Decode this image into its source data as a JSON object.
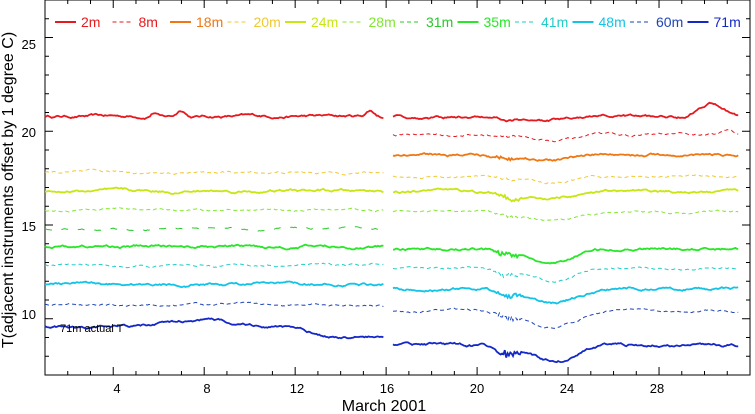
{
  "chart_data": {
    "type": "line",
    "title": "",
    "xlabel": "March 2001",
    "ylabel": "T(adjacent instruments offset by 1 degree C)",
    "xlim": [
      1,
      32
    ],
    "ylim": [
      7,
      27
    ],
    "xticks": [
      4,
      8,
      12,
      16,
      20,
      24,
      28
    ],
    "xtick_labels": [
      "4",
      "8",
      "12",
      "16",
      "20",
      "24",
      "28"
    ],
    "yticks": [
      10,
      15,
      20,
      25
    ],
    "ytick_labels": [
      "10",
      "15",
      "20",
      "25"
    ],
    "gap": [
      15.9,
      16.3
    ],
    "legend_position": "top",
    "annotation": "71m actual T",
    "series": [
      {
        "name": "2m",
        "color": "#e6191e",
        "style": "solid",
        "base_before": 20.8,
        "base_after": 20.75
      },
      {
        "name": "8m",
        "color": "#e6191e",
        "style": "dashed",
        "base_before": null,
        "base_after": 19.8
      },
      {
        "name": "18m",
        "color": "#f07814",
        "style": "solid",
        "base_before": null,
        "base_after": 18.75
      },
      {
        "name": "20m",
        "color": "#f0c832",
        "style": "dashed",
        "base_before": 17.8,
        "base_after": 17.6
      },
      {
        "name": "24m",
        "color": "#c8e614",
        "style": "solid",
        "base_before": 16.8,
        "base_after": 16.75
      },
      {
        "name": "28m",
        "color": "#82e632",
        "style": "dashed",
        "base_before": 15.8,
        "base_after": 15.7
      },
      {
        "name": "31m",
        "color": "#28c828",
        "style": "dashed",
        "base_before": 14.8,
        "base_after": null
      },
      {
        "name": "35m",
        "color": "#28e628",
        "style": "solid",
        "base_before": 13.85,
        "base_after": 13.7
      },
      {
        "name": "41m",
        "color": "#1ecdc8",
        "style": "dashed",
        "base_before": 12.85,
        "base_after": 12.7
      },
      {
        "name": "48m",
        "color": "#14c3e6",
        "style": "solid",
        "base_before": 11.85,
        "base_after": 11.6
      },
      {
        "name": "60m",
        "color": "#1e46b4",
        "style": "dashed",
        "base_before": 10.75,
        "base_after": 10.4
      },
      {
        "name": "71m",
        "color": "#1428c8",
        "style": "solid",
        "base_before": 9.6,
        "base_after": 8.6
      }
    ]
  }
}
